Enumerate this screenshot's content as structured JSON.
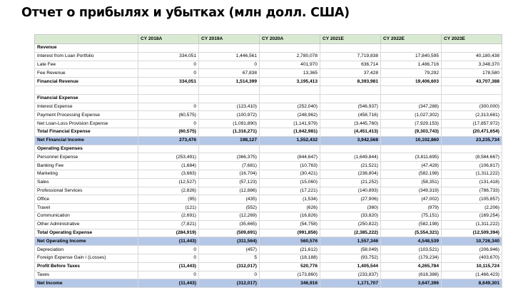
{
  "title": "Отчет о прибылях и убытках (млн долл. США)",
  "columns": [
    "",
    "CY 2018A",
    "CY 2019A",
    "CY 2020A",
    "CY 2021E",
    "CY 2022E",
    "CY 2023E"
  ],
  "rows": [
    {
      "label": "Revenue",
      "values": [
        "",
        "",
        "",
        "",
        "",
        ""
      ],
      "style": "bold"
    },
    {
      "label": "Interest from Loan Portfolio",
      "values": [
        "334,051",
        "1,446,561",
        "2,780,078",
        "7,719,838",
        "17,840,595",
        "40,180,438"
      ],
      "style": ""
    },
    {
      "label": "Late Fee",
      "values": [
        "0",
        "0",
        "401,970",
        "636,714",
        "1,486,716",
        "3,348,370"
      ],
      "style": ""
    },
    {
      "label": "Fee Revenue",
      "values": [
        "0",
        "67,838",
        "13,365",
        "37,428",
        "79,292",
        "178,580"
      ],
      "style": ""
    },
    {
      "label": "Financial Revenue",
      "values": [
        "334,051",
        "1,514,399",
        "3,195,413",
        "8,393,981",
        "19,406,603",
        "43,707,388"
      ],
      "style": "bold"
    },
    {
      "label": "",
      "values": [
        "",
        "",
        "",
        "",
        "",
        ""
      ],
      "style": "blank"
    },
    {
      "label": "Financial Expense",
      "values": [
        "",
        "",
        "",
        "",
        "",
        ""
      ],
      "style": "bold"
    },
    {
      "label": "Interest Expense",
      "values": [
        "0",
        "(123,410)",
        "(252,040)",
        "(546,937)",
        "(347,288)",
        "(300,000)"
      ],
      "style": ""
    },
    {
      "label": "Payment Processing Expense",
      "values": [
        "(60,575)",
        "(100,972)",
        "(248,962)",
        "(458,716)",
        "(1,027,302)",
        "(2,313,681)"
      ],
      "style": ""
    },
    {
      "label": "Net Loan-Loss Provision Expense",
      "values": [
        "0",
        "(1,091,890)",
        "(1,141,979)",
        "(3,445,760)",
        "(7,929,153)",
        "(17,857,972)"
      ],
      "style": ""
    },
    {
      "label": "Total Financial Expense",
      "values": [
        "(60,575)",
        "(1,316,271)",
        "(1,642,981)",
        "(4,451,413)",
        "(9,303,743)",
        "(20,471,654)"
      ],
      "style": "bold"
    },
    {
      "label": "Net Financial Income",
      "values": [
        "273,476",
        "198,127",
        "1,552,432",
        "3,942,568",
        "10,102,860",
        "23,235,734"
      ],
      "style": "hl"
    },
    {
      "label": "Operating Expenses",
      "values": [
        "",
        "",
        "",
        "",
        "",
        ""
      ],
      "style": "bold"
    },
    {
      "label": "Personnel Expense",
      "values": [
        "(253,491)",
        "(366,375)",
        "(844,647)",
        "(1,649,844)",
        "(3,811,695)",
        "(8,584,667)"
      ],
      "style": ""
    },
    {
      "label": "Banking Fee",
      "values": [
        "(1,684)",
        "(7,681)",
        "(10,763)",
        "(21,521)",
        "(47,428)",
        "(106,817)"
      ],
      "style": ""
    },
    {
      "label": "Marketing",
      "values": [
        "(3,663)",
        "(16,704)",
        "(30,421)",
        "(238,804)",
        "(582,198)",
        "(1,311,222)"
      ],
      "style": ""
    },
    {
      "label": "Sales",
      "values": [
        "(12,527)",
        "(57,123)",
        "(15,060)",
        "(21,252)",
        "(58,351)",
        "(131,418)"
      ],
      "style": ""
    },
    {
      "label": "Professional Services",
      "values": [
        "(2,826)",
        "(12,886)",
        "(17,221)",
        "(140,893)",
        "(349,319)",
        "(786,733)"
      ],
      "style": ""
    },
    {
      "label": "Office",
      "values": [
        "(95)",
        "(435)",
        "(1,534)",
        "(27,906)",
        "(47,002)",
        "(105,857)"
      ],
      "style": ""
    },
    {
      "label": "Travel",
      "values": [
        "(121)",
        "(552)",
        "(626)",
        "(360)",
        "(979)",
        "(2,206)"
      ],
      "style": ""
    },
    {
      "label": "Communication",
      "values": [
        "(2,691)",
        "(12,269)",
        "(16,826)",
        "(33,820)",
        "(75,151)",
        "(169,254)"
      ],
      "style": ""
    },
    {
      "label": "Other Administrative",
      "values": [
        "(7,821)",
        "(35,665)",
        "(54,758)",
        "(250,822)",
        "(582,198)",
        "(1,311,222)"
      ],
      "style": ""
    },
    {
      "label": "Total Operating Expense",
      "values": [
        "(284,919)",
        "(509,691)",
        "(991,856)",
        "(2,385,222)",
        "(5,554,321)",
        "(12,509,394)"
      ],
      "style": "bold"
    },
    {
      "label": "Net Operating Income",
      "values": [
        "(11,443)",
        "(311,564)",
        "560,576",
        "1,557,346",
        "4,548,539",
        "10,726,340"
      ],
      "style": "hl"
    },
    {
      "label": "Depreciation",
      "values": [
        "0",
        "(457)",
        "(21,612)",
        "(58,049)",
        "(103,521)",
        "(206,946)"
      ],
      "style": ""
    },
    {
      "label": "Foreign Expense Gain / (Losses)",
      "values": [
        "0",
        "5",
        "(18,188)",
        "(93,752)",
        "(179,234)",
        "(403,670)"
      ],
      "style": ""
    },
    {
      "label": "Profit Before Taxes",
      "values": [
        "(11,443)",
        "(312,017)",
        "520,776",
        "1,405,544",
        "4,265,784",
        "10,115,724"
      ],
      "style": "bold"
    },
    {
      "label": "Taxes",
      "values": [
        "0",
        "0",
        "(173,860)",
        "(233,837)",
        "(618,388)",
        "(1,466,423)"
      ],
      "style": ""
    },
    {
      "label": "Net Income",
      "values": [
        "(11,443)",
        "(312,017)",
        "346,916",
        "1,171,707",
        "3,647,396",
        "8,649,301"
      ],
      "style": "hl"
    }
  ]
}
